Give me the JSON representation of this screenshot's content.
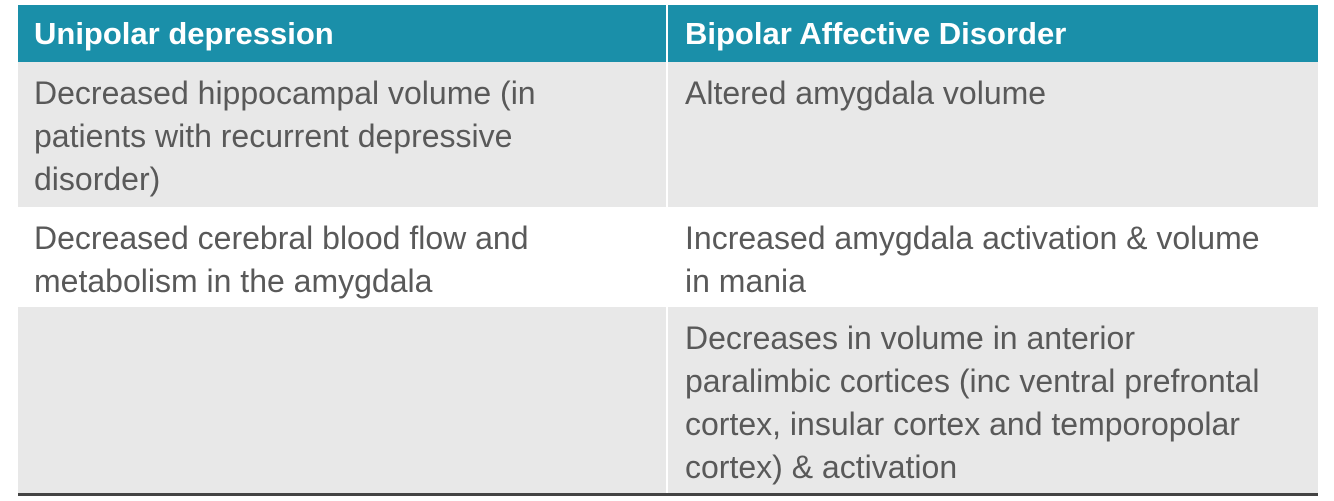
{
  "table": {
    "header": [
      "Unipolar depression",
      "Bipolar Affective Disorder"
    ],
    "rows": [
      [
        "Decreased hippocampal volume (in patients with recurrent depressive disorder)",
        "Altered amygdala volume"
      ],
      [
        "Decreased cerebral blood flow and metabolism in the amygdala",
        "Increased amygdala activation & volume in mania"
      ],
      [
        null,
        "Decreases in volume in anterior paralimbic cortices (inc ventral prefrontal cortex, insular cortex and temporopolar cortex) & activation"
      ]
    ]
  }
}
